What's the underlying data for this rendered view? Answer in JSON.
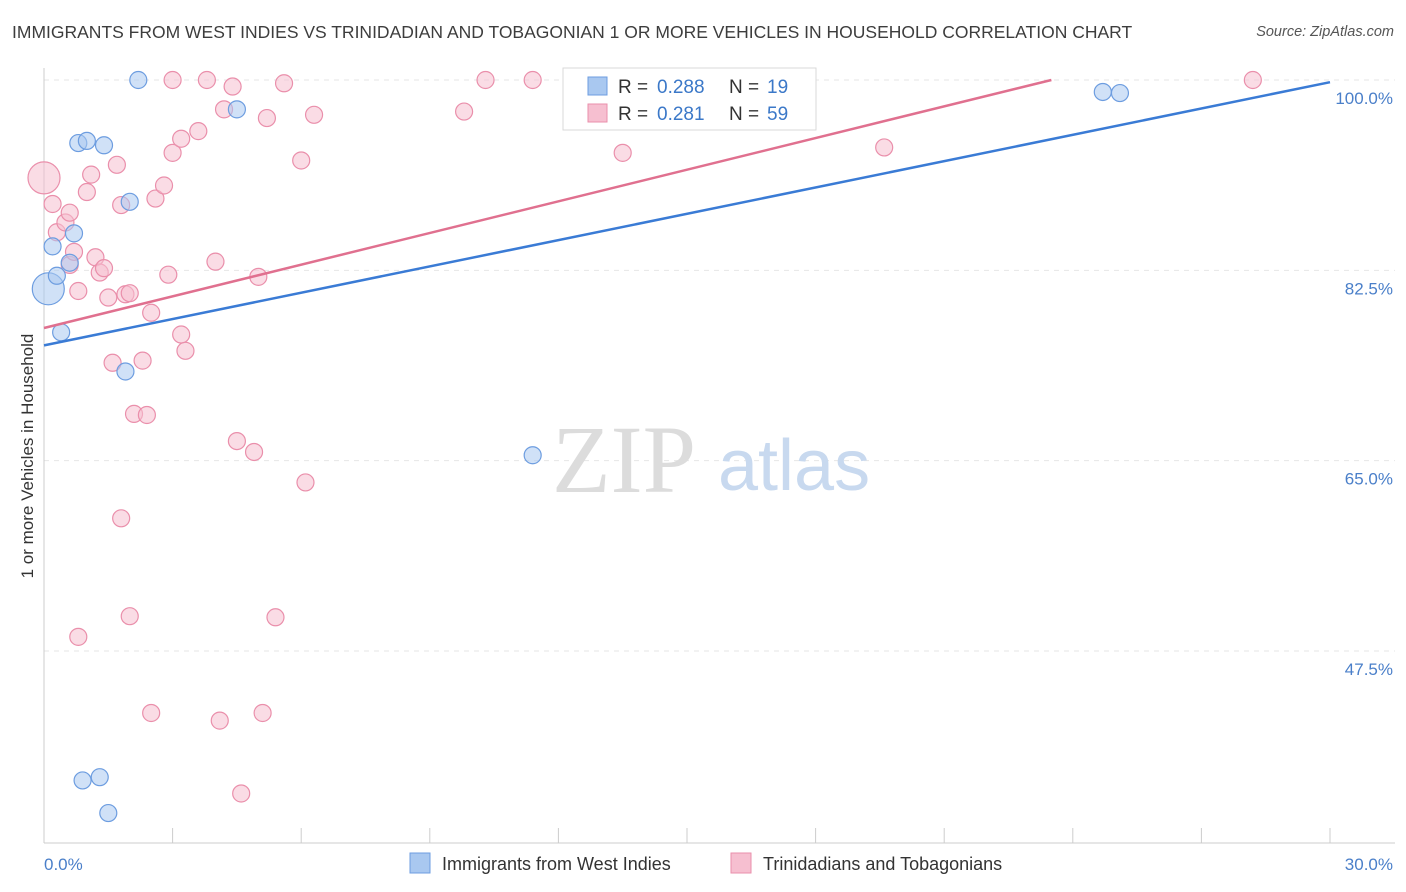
{
  "title": "IMMIGRANTS FROM WEST INDIES VS TRINIDADIAN AND TOBAGONIAN 1 OR MORE VEHICLES IN HOUSEHOLD CORRELATION CHART",
  "source": "Source: ZipAtlas.com",
  "watermark": {
    "zip": "ZIP",
    "atlas": "atlas"
  },
  "colors": {
    "blue_fill": "#a9c8f0",
    "blue_stroke": "#6d9de0",
    "blue_line": "#3a7bd5",
    "pink_fill": "#f6bfd0",
    "pink_stroke": "#ea8fab",
    "pink_line": "#e0708f",
    "grid": "#e6e6e6",
    "axis_text": "#4a7fc9"
  },
  "legend": {
    "r_label": "R =",
    "n_label": "N =",
    "rows": [
      {
        "series": "blue",
        "r": "0.288",
        "n": "19"
      },
      {
        "series": "pink",
        "r": "0.281",
        "n": "59"
      }
    ]
  },
  "chart_data": {
    "type": "scatter",
    "title": "IMMIGRANTS FROM WEST INDIES VS TRINIDADIAN AND TOBAGONIAN 1 OR MORE VEHICLES IN HOUSEHOLD CORRELATION CHART",
    "xlabel": "",
    "ylabel": "1 or more Vehicles in Household",
    "xlim": [
      0,
      30
    ],
    "ylim": [
      28,
      102
    ],
    "x_ticks": [
      "0.0%",
      "30.0%"
    ],
    "y_ticks": [
      {
        "value": 47.5,
        "label": "47.5%"
      },
      {
        "value": 65.0,
        "label": "65.0%"
      },
      {
        "value": 82.5,
        "label": "82.5%"
      },
      {
        "value": 100.0,
        "label": "100.0%"
      }
    ],
    "grid": true,
    "legend_position": "top-center",
    "series": [
      {
        "name": "Immigrants from West Indies",
        "color": "blue",
        "points": [
          {
            "x": 0.1,
            "y": 80.8,
            "big": true
          },
          {
            "x": 0.2,
            "y": 84.7
          },
          {
            "x": 0.3,
            "y": 82.0
          },
          {
            "x": 0.6,
            "y": 83.2
          },
          {
            "x": 0.4,
            "y": 76.8
          },
          {
            "x": 0.7,
            "y": 85.9
          },
          {
            "x": 0.8,
            "y": 94.2
          },
          {
            "x": 1.0,
            "y": 94.4
          },
          {
            "x": 1.4,
            "y": 94.0
          },
          {
            "x": 2.2,
            "y": 100.0
          },
          {
            "x": 4.5,
            "y": 97.3
          },
          {
            "x": 2.0,
            "y": 88.8
          },
          {
            "x": 1.9,
            "y": 73.2
          },
          {
            "x": 11.4,
            "y": 65.5
          },
          {
            "x": 24.7,
            "y": 98.9
          },
          {
            "x": 25.1,
            "y": 98.8
          },
          {
            "x": 0.9,
            "y": 35.6
          },
          {
            "x": 1.3,
            "y": 35.9
          },
          {
            "x": 1.5,
            "y": 32.6
          }
        ],
        "trend": {
          "x0": 0,
          "y0": 75.6,
          "x1": 30,
          "y1": 99.8
        }
      },
      {
        "name": "Trinidadians and Tobagonians",
        "color": "pink",
        "points": [
          {
            "x": 0.0,
            "y": 91.0,
            "big": true
          },
          {
            "x": 0.2,
            "y": 88.6
          },
          {
            "x": 0.3,
            "y": 86.0
          },
          {
            "x": 0.5,
            "y": 86.9
          },
          {
            "x": 0.6,
            "y": 87.8
          },
          {
            "x": 0.6,
            "y": 83.0
          },
          {
            "x": 0.7,
            "y": 84.2
          },
          {
            "x": 0.8,
            "y": 80.6
          },
          {
            "x": 1.0,
            "y": 89.7
          },
          {
            "x": 1.1,
            "y": 91.3
          },
          {
            "x": 1.2,
            "y": 83.7
          },
          {
            "x": 1.3,
            "y": 82.3
          },
          {
            "x": 1.4,
            "y": 82.7
          },
          {
            "x": 1.5,
            "y": 80.0
          },
          {
            "x": 1.6,
            "y": 74.0
          },
          {
            "x": 1.7,
            "y": 92.2
          },
          {
            "x": 1.8,
            "y": 88.5
          },
          {
            "x": 1.9,
            "y": 80.3
          },
          {
            "x": 2.0,
            "y": 80.4
          },
          {
            "x": 2.1,
            "y": 69.3
          },
          {
            "x": 2.3,
            "y": 74.2
          },
          {
            "x": 2.4,
            "y": 69.2
          },
          {
            "x": 2.5,
            "y": 78.6
          },
          {
            "x": 2.6,
            "y": 89.1
          },
          {
            "x": 2.8,
            "y": 90.3
          },
          {
            "x": 2.9,
            "y": 82.1
          },
          {
            "x": 3.0,
            "y": 93.3
          },
          {
            "x": 3.2,
            "y": 94.6
          },
          {
            "x": 3.2,
            "y": 76.6
          },
          {
            "x": 3.3,
            "y": 75.1
          },
          {
            "x": 3.0,
            "y": 100.0
          },
          {
            "x": 3.6,
            "y": 95.3
          },
          {
            "x": 3.8,
            "y": 100.0
          },
          {
            "x": 4.0,
            "y": 83.3
          },
          {
            "x": 4.2,
            "y": 97.3
          },
          {
            "x": 4.4,
            "y": 99.4
          },
          {
            "x": 4.5,
            "y": 66.8
          },
          {
            "x": 4.9,
            "y": 65.8
          },
          {
            "x": 5.0,
            "y": 81.9
          },
          {
            "x": 5.2,
            "y": 96.5
          },
          {
            "x": 5.6,
            "y": 99.7
          },
          {
            "x": 6.0,
            "y": 92.6
          },
          {
            "x": 6.3,
            "y": 96.8
          },
          {
            "x": 6.1,
            "y": 63.0
          },
          {
            "x": 1.8,
            "y": 59.7
          },
          {
            "x": 0.8,
            "y": 48.8
          },
          {
            "x": 2.0,
            "y": 50.7
          },
          {
            "x": 5.4,
            "y": 50.6
          },
          {
            "x": 2.5,
            "y": 41.8
          },
          {
            "x": 4.1,
            "y": 41.1
          },
          {
            "x": 5.1,
            "y": 41.8
          },
          {
            "x": 4.6,
            "y": 34.4
          },
          {
            "x": 9.8,
            "y": 97.1
          },
          {
            "x": 10.3,
            "y": 100.0
          },
          {
            "x": 11.4,
            "y": 100.0
          },
          {
            "x": 12.6,
            "y": 99.6
          },
          {
            "x": 13.5,
            "y": 93.3
          },
          {
            "x": 19.6,
            "y": 93.8
          },
          {
            "x": 28.2,
            "y": 100.0
          }
        ],
        "trend": {
          "x0": 0,
          "y0": 77.2,
          "x1": 23.5,
          "y1": 100.0
        }
      }
    ]
  },
  "bottom_legend": [
    {
      "series": "blue",
      "label": "Immigrants from West Indies"
    },
    {
      "series": "pink",
      "label": "Trinidadians and Tobagonians"
    }
  ]
}
